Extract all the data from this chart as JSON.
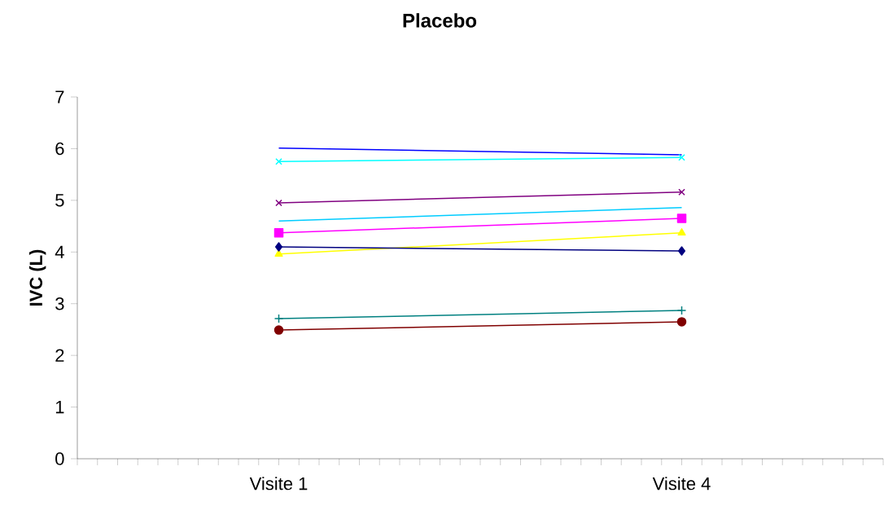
{
  "chart_data": {
    "type": "line",
    "title": "Placebo",
    "ylabel": "IVC (L)",
    "categories": [
      "Visite 1",
      "Visite 4"
    ],
    "ylim": [
      0,
      7
    ],
    "yticks": [
      0,
      1,
      2,
      3,
      4,
      5,
      6,
      7
    ],
    "grid": false,
    "legend": false,
    "series": [
      {
        "color": "#0000ff",
        "marker": "none",
        "values": [
          6.01,
          5.88
        ]
      },
      {
        "color": "#00ffff",
        "marker": "cross",
        "values": [
          5.75,
          5.83
        ]
      },
      {
        "color": "#800080",
        "marker": "cross",
        "values": [
          4.95,
          5.16
        ]
      },
      {
        "color": "#00ccff",
        "marker": "none",
        "values": [
          4.6,
          4.86
        ]
      },
      {
        "color": "#ff00ff",
        "marker": "square",
        "values": [
          4.37,
          4.65
        ]
      },
      {
        "color": "#ffff00",
        "marker": "triangle",
        "values": [
          3.96,
          4.37
        ]
      },
      {
        "color": "#000080",
        "marker": "diamond",
        "values": [
          4.1,
          4.02
        ]
      },
      {
        "color": "#008080",
        "marker": "plus",
        "values": [
          2.71,
          2.87
        ]
      },
      {
        "color": "#800000",
        "marker": "circle",
        "values": [
          2.49,
          2.65
        ]
      }
    ]
  }
}
